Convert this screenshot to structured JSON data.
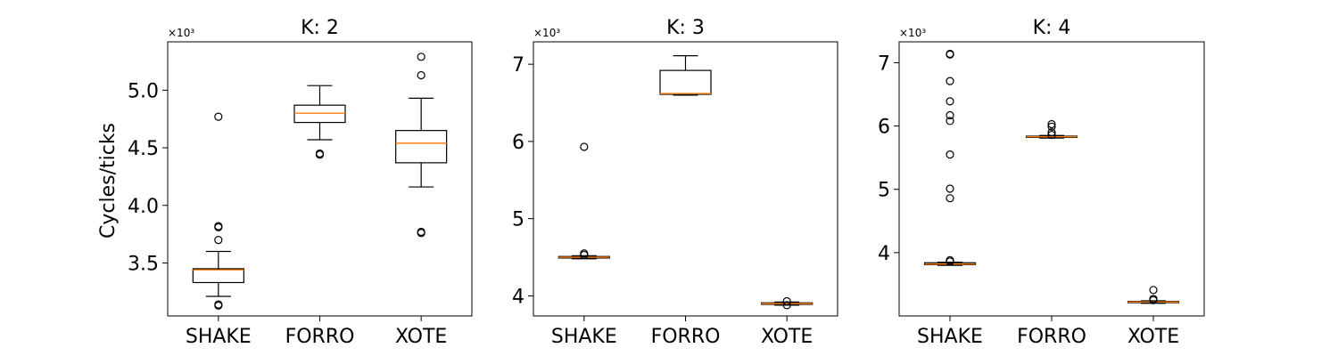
{
  "figure": {
    "ylabel": "Cycles/ticks",
    "multiplier": "×10³"
  },
  "colors": {
    "median": "#ff7f0e",
    "box": "#000000",
    "background": "#ffffff"
  },
  "chart_data": [
    {
      "type": "box",
      "title": "K: 2",
      "categories": [
        "SHAKE",
        "FORRO",
        "XOTE"
      ],
      "ylabel": "Cycles/ticks",
      "multiplier": "×10³",
      "ylim": [
        3.04,
        5.42
      ],
      "yticks": [
        3.5,
        4.0,
        4.5,
        5.0
      ],
      "ytick_labels": [
        "3.5",
        "4.0",
        "4.5",
        "5.0"
      ],
      "series": [
        {
          "category": "SHAKE",
          "whisker_low": 3.21,
          "q1": 3.33,
          "median": 3.44,
          "q3": 3.45,
          "whisker_high": 3.6,
          "outliers": [
            3.13,
            3.14,
            3.7,
            3.81,
            3.82,
            4.77
          ]
        },
        {
          "category": "FORRO",
          "whisker_low": 4.57,
          "q1": 4.72,
          "median": 4.8,
          "q3": 4.87,
          "whisker_high": 5.04,
          "outliers": [
            4.44,
            4.45
          ]
        },
        {
          "category": "XOTE",
          "whisker_low": 4.16,
          "q1": 4.37,
          "median": 4.54,
          "q3": 4.65,
          "whisker_high": 4.93,
          "outliers": [
            3.76,
            3.77,
            5.13,
            5.29
          ]
        }
      ]
    },
    {
      "type": "box",
      "title": "K: 3",
      "categories": [
        "SHAKE",
        "FORRO",
        "XOTE"
      ],
      "ylabel": "",
      "multiplier": "×10³",
      "ylim": [
        3.74,
        7.29
      ],
      "yticks": [
        4,
        5,
        6,
        7
      ],
      "ytick_labels": [
        "4",
        "5",
        "6",
        "7"
      ],
      "series": [
        {
          "category": "SHAKE",
          "whisker_low": 4.48,
          "q1": 4.49,
          "median": 4.5,
          "q3": 4.51,
          "whisker_high": 4.52,
          "outliers": [
            4.53,
            4.55,
            5.93
          ]
        },
        {
          "category": "FORRO",
          "whisker_low": 6.6,
          "q1": 6.61,
          "median": 6.62,
          "q3": 6.92,
          "whisker_high": 7.11,
          "outliers": []
        },
        {
          "category": "XOTE",
          "whisker_low": 3.88,
          "q1": 3.89,
          "median": 3.9,
          "q3": 3.91,
          "whisker_high": 3.92,
          "outliers": [
            3.88,
            3.93
          ]
        }
      ]
    },
    {
      "type": "box",
      "title": "K: 4",
      "categories": [
        "SHAKE",
        "FORRO",
        "XOTE"
      ],
      "ylabel": "",
      "multiplier": "×10³",
      "ylim": [
        3.0,
        7.33
      ],
      "yticks": [
        4,
        5,
        6,
        7
      ],
      "ytick_labels": [
        "4",
        "5",
        "6",
        "7"
      ],
      "series": [
        {
          "category": "SHAKE",
          "whisker_low": 3.8,
          "q1": 3.81,
          "median": 3.82,
          "q3": 3.84,
          "whisker_high": 3.85,
          "outliers": [
            3.86,
            3.88,
            4.86,
            5.01,
            5.55,
            6.08,
            6.17,
            6.39,
            6.71,
            7.13,
            7.14
          ]
        },
        {
          "category": "FORRO",
          "whisker_low": 5.81,
          "q1": 5.82,
          "median": 5.83,
          "q3": 5.84,
          "whisker_high": 5.85,
          "outliers": [
            5.86,
            5.9,
            5.99,
            6.03
          ]
        },
        {
          "category": "XOTE",
          "whisker_low": 3.2,
          "q1": 3.21,
          "median": 3.22,
          "q3": 3.23,
          "whisker_high": 3.24,
          "outliers": [
            3.25,
            3.27,
            3.41
          ]
        }
      ]
    }
  ]
}
